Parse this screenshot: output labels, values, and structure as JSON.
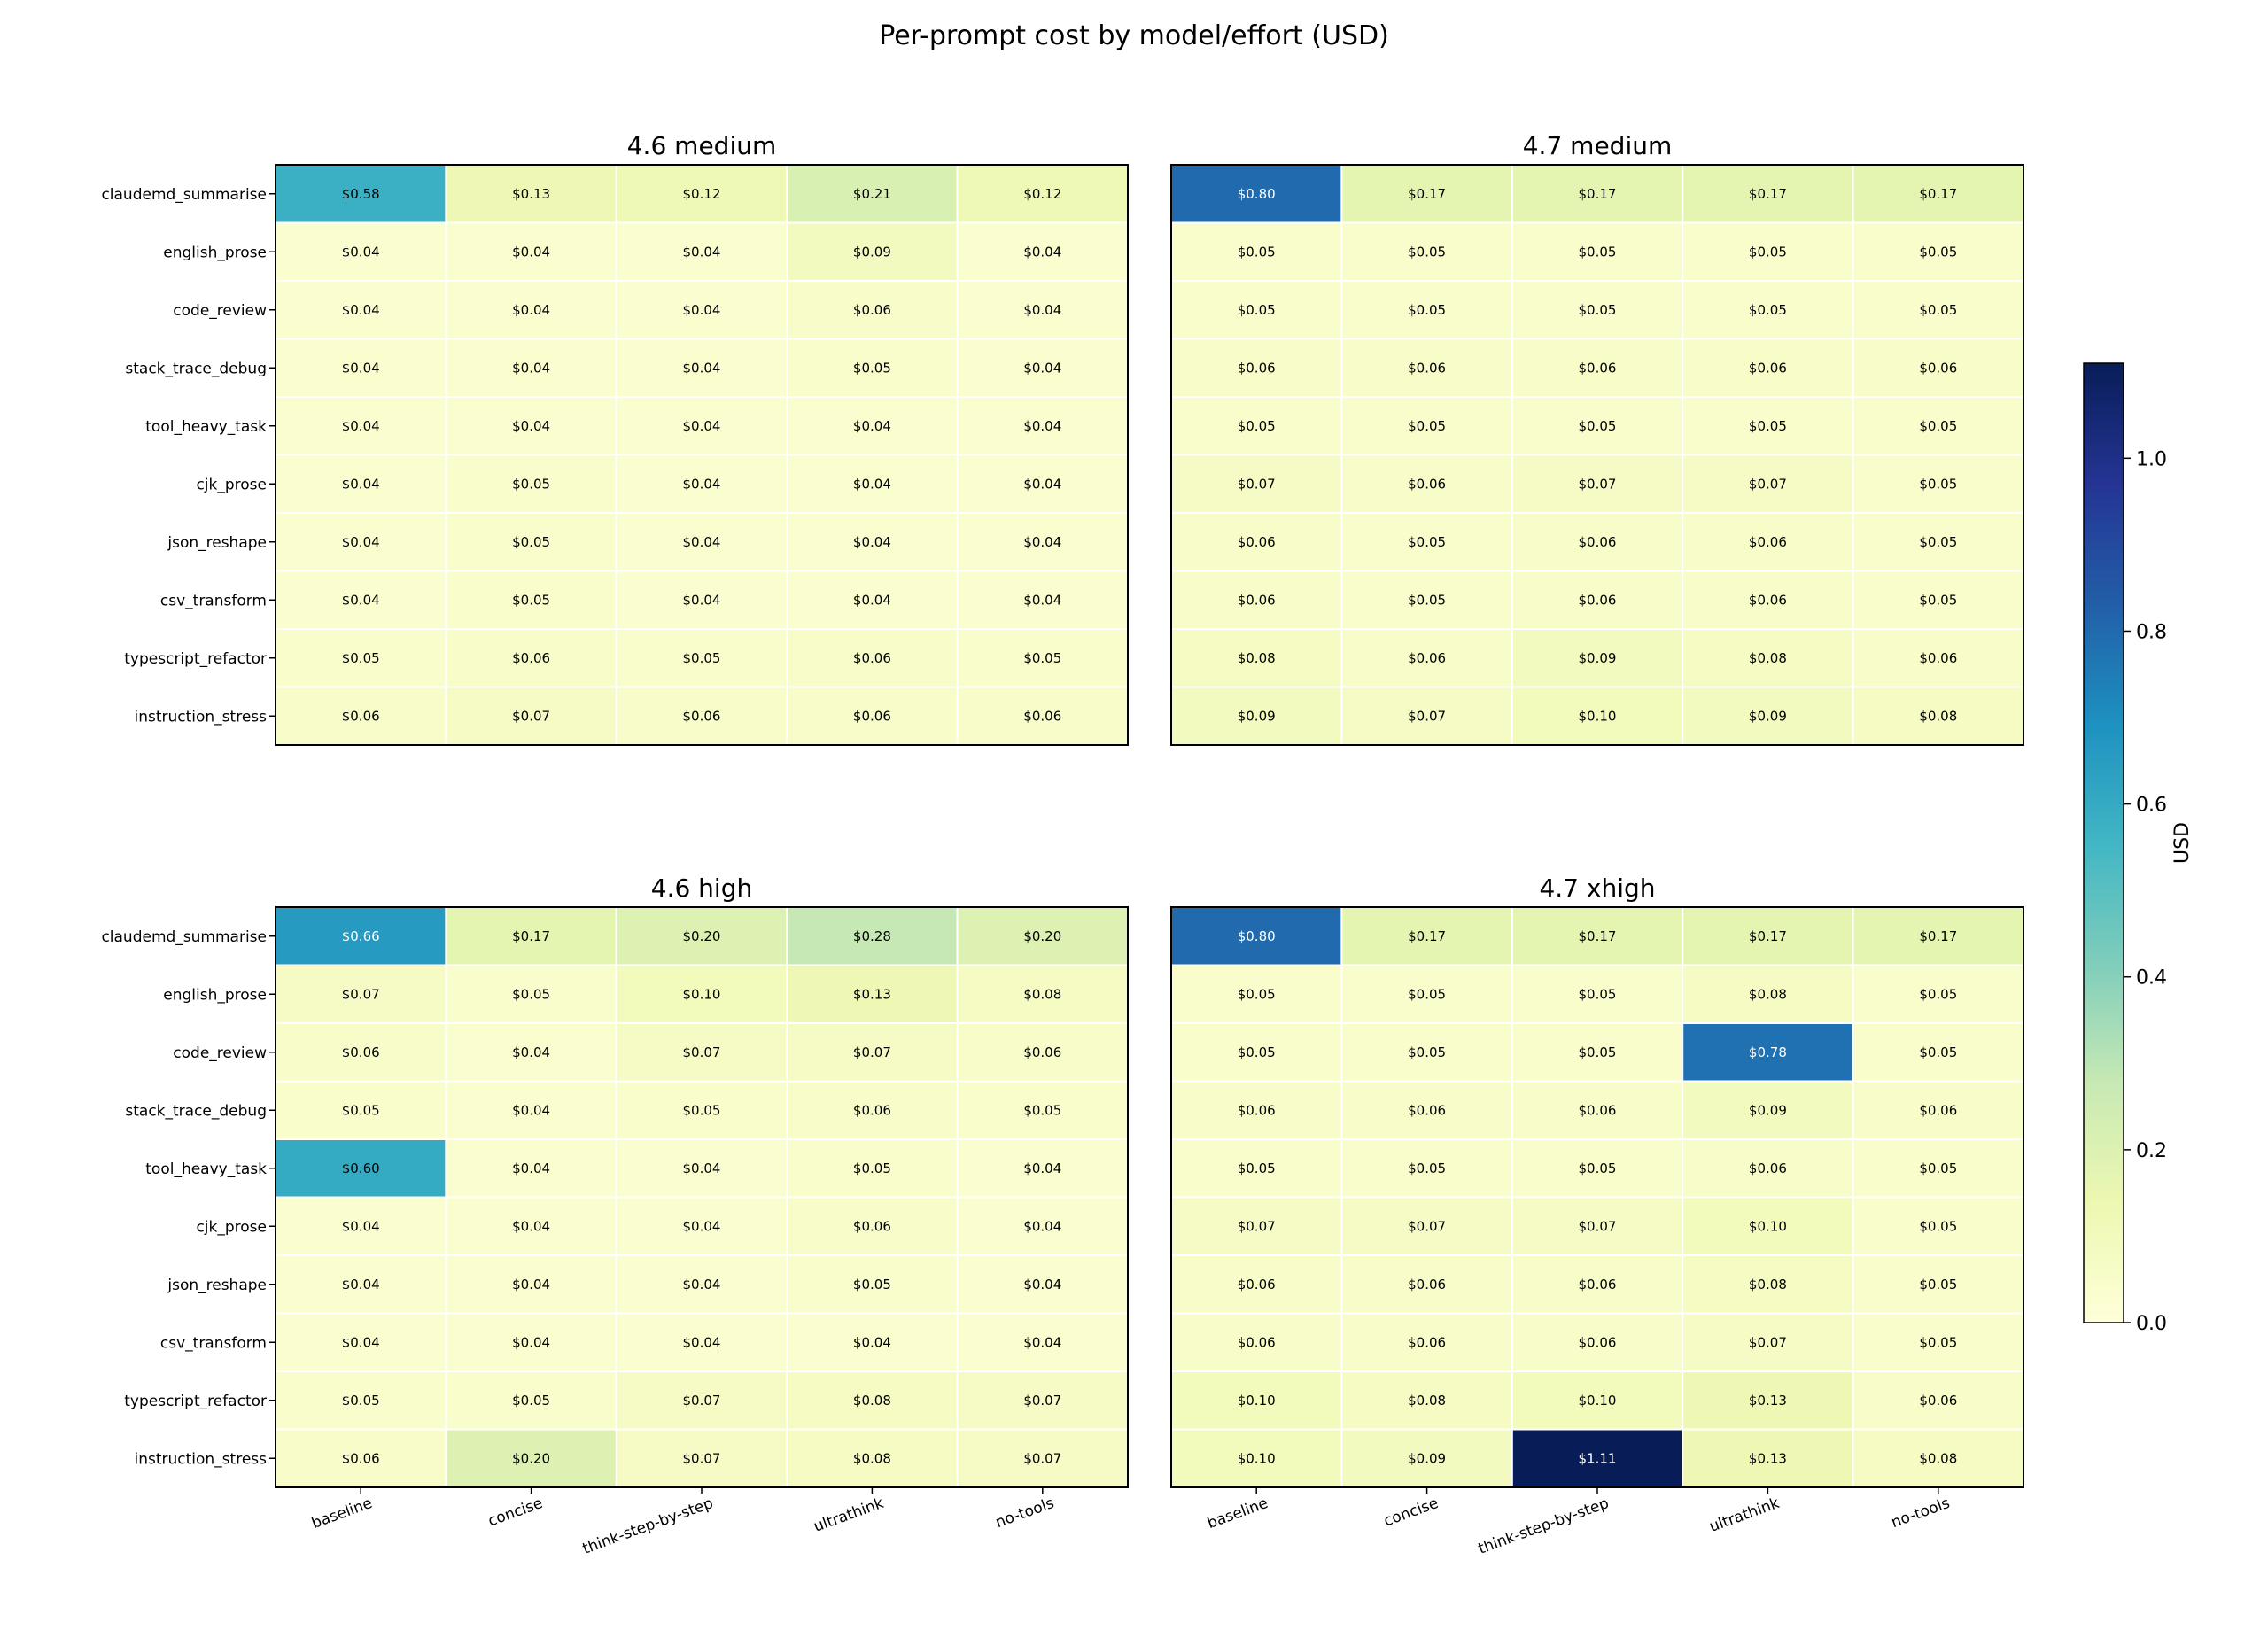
{
  "figure_title": "Per-prompt cost by model/effort (USD)",
  "colorbar": {
    "label": "USD",
    "range": [
      0.0,
      1.11
    ],
    "ticks": [
      "0.0",
      "0.2",
      "0.4",
      "0.6",
      "0.8",
      "1.0"
    ],
    "tick_values": [
      0.0,
      0.2,
      0.4,
      0.6,
      0.8,
      1.0
    ],
    "colormap": "YlGnBu",
    "colormap_stops": [
      "#ffffd9",
      "#edf8b1",
      "#c7e9b4",
      "#7fcdbb",
      "#41b6c4",
      "#1d91c0",
      "#225ea8",
      "#253494",
      "#081d58"
    ]
  },
  "chart_data": [
    {
      "type": "heatmap",
      "title": "4.6 medium",
      "rows": [
        "claudemd_summarise",
        "english_prose",
        "code_review",
        "stack_trace_debug",
        "tool_heavy_task",
        "cjk_prose",
        "json_reshape",
        "csv_transform",
        "typescript_refactor",
        "instruction_stress"
      ],
      "columns": [
        "baseline",
        "concise",
        "think-step-by-step",
        "ultrathink",
        "no-tools"
      ],
      "values": [
        [
          0.58,
          0.13,
          0.12,
          0.21,
          0.12
        ],
        [
          0.04,
          0.04,
          0.04,
          0.09,
          0.04
        ],
        [
          0.04,
          0.04,
          0.04,
          0.06,
          0.04
        ],
        [
          0.04,
          0.04,
          0.04,
          0.05,
          0.04
        ],
        [
          0.04,
          0.04,
          0.04,
          0.04,
          0.04
        ],
        [
          0.04,
          0.05,
          0.04,
          0.04,
          0.04
        ],
        [
          0.04,
          0.05,
          0.04,
          0.04,
          0.04
        ],
        [
          0.04,
          0.05,
          0.04,
          0.04,
          0.04
        ],
        [
          0.05,
          0.06,
          0.05,
          0.06,
          0.05
        ],
        [
          0.06,
          0.07,
          0.06,
          0.06,
          0.06
        ]
      ],
      "labels": [
        [
          "$0.58",
          "$0.13",
          "$0.12",
          "$0.21",
          "$0.12"
        ],
        [
          "$0.04",
          "$0.04",
          "$0.04",
          "$0.09",
          "$0.04"
        ],
        [
          "$0.04",
          "$0.04",
          "$0.04",
          "$0.06",
          "$0.04"
        ],
        [
          "$0.04",
          "$0.04",
          "$0.04",
          "$0.05",
          "$0.04"
        ],
        [
          "$0.04",
          "$0.04",
          "$0.04",
          "$0.04",
          "$0.04"
        ],
        [
          "$0.04",
          "$0.05",
          "$0.04",
          "$0.04",
          "$0.04"
        ],
        [
          "$0.04",
          "$0.05",
          "$0.04",
          "$0.04",
          "$0.04"
        ],
        [
          "$0.04",
          "$0.05",
          "$0.04",
          "$0.04",
          "$0.04"
        ],
        [
          "$0.05",
          "$0.06",
          "$0.05",
          "$0.06",
          "$0.05"
        ],
        [
          "$0.06",
          "$0.07",
          "$0.06",
          "$0.06",
          "$0.06"
        ]
      ],
      "show_row_labels": true,
      "show_column_labels": false
    },
    {
      "type": "heatmap",
      "title": "4.7 medium",
      "rows": [
        "claudemd_summarise",
        "english_prose",
        "code_review",
        "stack_trace_debug",
        "tool_heavy_task",
        "cjk_prose",
        "json_reshape",
        "csv_transform",
        "typescript_refactor",
        "instruction_stress"
      ],
      "columns": [
        "baseline",
        "concise",
        "think-step-by-step",
        "ultrathink",
        "no-tools"
      ],
      "values": [
        [
          0.8,
          0.17,
          0.17,
          0.17,
          0.17
        ],
        [
          0.05,
          0.05,
          0.05,
          0.05,
          0.05
        ],
        [
          0.05,
          0.05,
          0.05,
          0.05,
          0.05
        ],
        [
          0.06,
          0.06,
          0.06,
          0.06,
          0.06
        ],
        [
          0.05,
          0.05,
          0.05,
          0.05,
          0.05
        ],
        [
          0.07,
          0.06,
          0.07,
          0.07,
          0.05
        ],
        [
          0.06,
          0.05,
          0.06,
          0.06,
          0.05
        ],
        [
          0.06,
          0.05,
          0.06,
          0.06,
          0.05
        ],
        [
          0.08,
          0.06,
          0.09,
          0.08,
          0.06
        ],
        [
          0.09,
          0.07,
          0.1,
          0.09,
          0.08
        ]
      ],
      "labels": [
        [
          "$0.80",
          "$0.17",
          "$0.17",
          "$0.17",
          "$0.17"
        ],
        [
          "$0.05",
          "$0.05",
          "$0.05",
          "$0.05",
          "$0.05"
        ],
        [
          "$0.05",
          "$0.05",
          "$0.05",
          "$0.05",
          "$0.05"
        ],
        [
          "$0.06",
          "$0.06",
          "$0.06",
          "$0.06",
          "$0.06"
        ],
        [
          "$0.05",
          "$0.05",
          "$0.05",
          "$0.05",
          "$0.05"
        ],
        [
          "$0.07",
          "$0.06",
          "$0.07",
          "$0.07",
          "$0.05"
        ],
        [
          "$0.06",
          "$0.05",
          "$0.06",
          "$0.06",
          "$0.05"
        ],
        [
          "$0.06",
          "$0.05",
          "$0.06",
          "$0.06",
          "$0.05"
        ],
        [
          "$0.08",
          "$0.06",
          "$0.09",
          "$0.08",
          "$0.06"
        ],
        [
          "$0.09",
          "$0.07",
          "$0.10",
          "$0.09",
          "$0.08"
        ]
      ],
      "show_row_labels": false,
      "show_column_labels": false
    },
    {
      "type": "heatmap",
      "title": "4.6 high",
      "rows": [
        "claudemd_summarise",
        "english_prose",
        "code_review",
        "stack_trace_debug",
        "tool_heavy_task",
        "cjk_prose",
        "json_reshape",
        "csv_transform",
        "typescript_refactor",
        "instruction_stress"
      ],
      "columns": [
        "baseline",
        "concise",
        "think-step-by-step",
        "ultrathink",
        "no-tools"
      ],
      "values": [
        [
          0.66,
          0.17,
          0.2,
          0.28,
          0.2
        ],
        [
          0.07,
          0.05,
          0.1,
          0.13,
          0.08
        ],
        [
          0.06,
          0.04,
          0.07,
          0.07,
          0.06
        ],
        [
          0.05,
          0.04,
          0.05,
          0.06,
          0.05
        ],
        [
          0.6,
          0.04,
          0.04,
          0.05,
          0.04
        ],
        [
          0.04,
          0.04,
          0.04,
          0.06,
          0.04
        ],
        [
          0.04,
          0.04,
          0.04,
          0.05,
          0.04
        ],
        [
          0.04,
          0.04,
          0.04,
          0.04,
          0.04
        ],
        [
          0.05,
          0.05,
          0.07,
          0.08,
          0.07
        ],
        [
          0.06,
          0.2,
          0.07,
          0.08,
          0.07
        ]
      ],
      "labels": [
        [
          "$0.66",
          "$0.17",
          "$0.20",
          "$0.28",
          "$0.20"
        ],
        [
          "$0.07",
          "$0.05",
          "$0.10",
          "$0.13",
          "$0.08"
        ],
        [
          "$0.06",
          "$0.04",
          "$0.07",
          "$0.07",
          "$0.06"
        ],
        [
          "$0.05",
          "$0.04",
          "$0.05",
          "$0.06",
          "$0.05"
        ],
        [
          "$0.60",
          "$0.04",
          "$0.04",
          "$0.05",
          "$0.04"
        ],
        [
          "$0.04",
          "$0.04",
          "$0.04",
          "$0.06",
          "$0.04"
        ],
        [
          "$0.04",
          "$0.04",
          "$0.04",
          "$0.05",
          "$0.04"
        ],
        [
          "$0.04",
          "$0.04",
          "$0.04",
          "$0.04",
          "$0.04"
        ],
        [
          "$0.05",
          "$0.05",
          "$0.07",
          "$0.08",
          "$0.07"
        ],
        [
          "$0.06",
          "$0.20",
          "$0.07",
          "$0.08",
          "$0.07"
        ]
      ],
      "show_row_labels": true,
      "show_column_labels": true
    },
    {
      "type": "heatmap",
      "title": "4.7 xhigh",
      "rows": [
        "claudemd_summarise",
        "english_prose",
        "code_review",
        "stack_trace_debug",
        "tool_heavy_task",
        "cjk_prose",
        "json_reshape",
        "csv_transform",
        "typescript_refactor",
        "instruction_stress"
      ],
      "columns": [
        "baseline",
        "concise",
        "think-step-by-step",
        "ultrathink",
        "no-tools"
      ],
      "values": [
        [
          0.8,
          0.17,
          0.17,
          0.17,
          0.17
        ],
        [
          0.05,
          0.05,
          0.05,
          0.08,
          0.05
        ],
        [
          0.05,
          0.05,
          0.05,
          0.78,
          0.05
        ],
        [
          0.06,
          0.06,
          0.06,
          0.09,
          0.06
        ],
        [
          0.05,
          0.05,
          0.05,
          0.06,
          0.05
        ],
        [
          0.07,
          0.07,
          0.07,
          0.1,
          0.05
        ],
        [
          0.06,
          0.06,
          0.06,
          0.08,
          0.05
        ],
        [
          0.06,
          0.06,
          0.06,
          0.07,
          0.05
        ],
        [
          0.1,
          0.08,
          0.1,
          0.13,
          0.06
        ],
        [
          0.1,
          0.09,
          1.11,
          0.13,
          0.08
        ]
      ],
      "labels": [
        [
          "$0.80",
          "$0.17",
          "$0.17",
          "$0.17",
          "$0.17"
        ],
        [
          "$0.05",
          "$0.05",
          "$0.05",
          "$0.08",
          "$0.05"
        ],
        [
          "$0.05",
          "$0.05",
          "$0.05",
          "$0.78",
          "$0.05"
        ],
        [
          "$0.06",
          "$0.06",
          "$0.06",
          "$0.09",
          "$0.06"
        ],
        [
          "$0.05",
          "$0.05",
          "$0.05",
          "$0.06",
          "$0.05"
        ],
        [
          "$0.07",
          "$0.07",
          "$0.07",
          "$0.10",
          "$0.05"
        ],
        [
          "$0.06",
          "$0.06",
          "$0.06",
          "$0.08",
          "$0.05"
        ],
        [
          "$0.06",
          "$0.06",
          "$0.06",
          "$0.07",
          "$0.05"
        ],
        [
          "$0.10",
          "$0.08",
          "$0.10",
          "$0.13",
          "$0.06"
        ],
        [
          "$0.10",
          "$0.09",
          "$1.11",
          "$0.13",
          "$0.08"
        ]
      ],
      "show_row_labels": false,
      "show_column_labels": true
    }
  ]
}
